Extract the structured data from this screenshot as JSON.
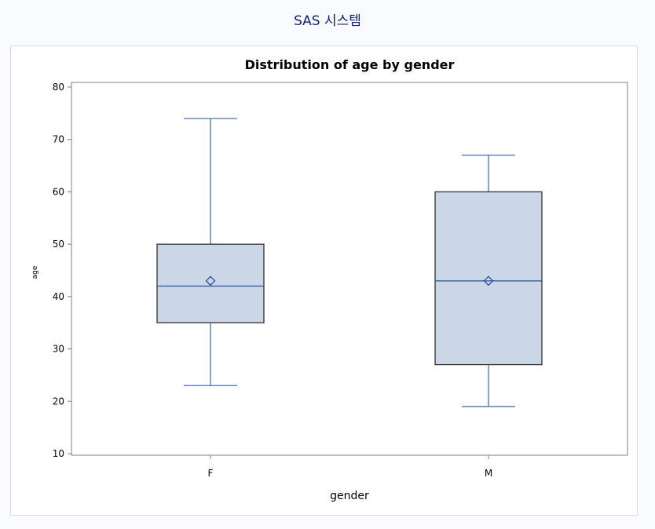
{
  "page": {
    "title": "SAS 시스템"
  },
  "colors": {
    "box_fill": "#cbd6e6",
    "box_stroke": "#333333",
    "median_line": "#2c4fa6",
    "whisker": "#4d6fb8",
    "mean_marker": "#2c4fa6",
    "axis": "#808080",
    "title_text": "#112277"
  },
  "chart_data": {
    "type": "box",
    "title": "Distribution of age by gender",
    "xlabel": "gender",
    "ylabel": "age",
    "ylim": [
      10,
      80
    ],
    "yticks": [
      10,
      20,
      30,
      40,
      50,
      60,
      70,
      80
    ],
    "categories": [
      "F",
      "M"
    ],
    "boxes": [
      {
        "category": "F",
        "min": 23,
        "q1": 35,
        "median": 42,
        "q3": 50,
        "max": 74,
        "mean": 43
      },
      {
        "category": "M",
        "min": 19,
        "q1": 27,
        "median": 43,
        "q3": 60,
        "max": 67,
        "mean": 43
      }
    ],
    "grid": false,
    "legend": "none"
  }
}
